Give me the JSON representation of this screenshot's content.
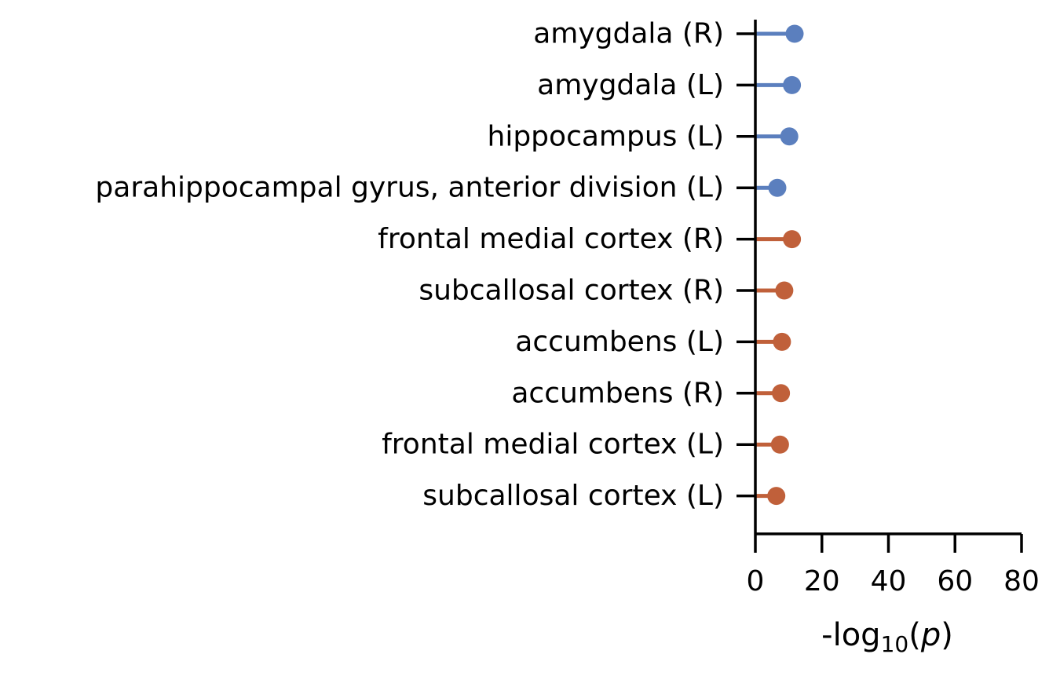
{
  "chart_data": {
    "type": "lollipop",
    "orientation": "horizontal",
    "categories": [
      "amygdala (R)",
      "amygdala (L)",
      "hippocampus (L)",
      "parahippocampal gyrus, anterior division (L)",
      "frontal medial cortex (R)",
      "subcallosal cortex (R)",
      "accumbens (L)",
      "accumbens (R)",
      "frontal medial cortex (L)",
      "subcallosal cortex (L)"
    ],
    "values": [
      11.8,
      11.0,
      10.2,
      6.6,
      11.0,
      8.7,
      8.0,
      7.7,
      7.4,
      6.3
    ],
    "group_colors": [
      "#5b7fbe",
      "#5b7fbe",
      "#5b7fbe",
      "#5b7fbe",
      "#c0603a",
      "#c0603a",
      "#c0603a",
      "#c0603a",
      "#c0603a",
      "#c0603a"
    ],
    "xlim": [
      0,
      80
    ],
    "xticks": [
      0,
      20,
      40,
      60,
      80
    ],
    "xlabel": {
      "prefix": "-log",
      "subscript": "10",
      "open": "(",
      "variable": "p",
      "close": ")"
    },
    "grid": false,
    "legend": "none"
  }
}
